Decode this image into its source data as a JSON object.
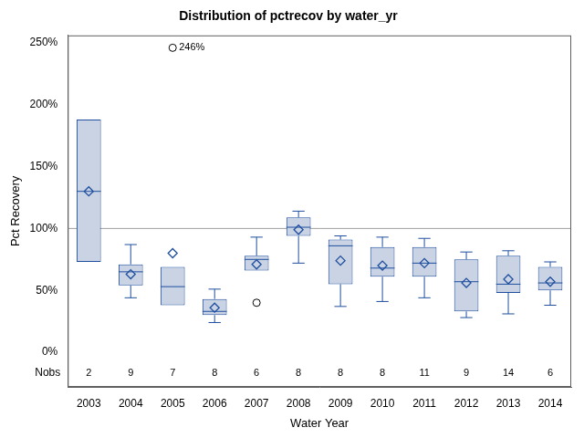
{
  "chart_data": {
    "type": "boxplot",
    "title": "Distribution of pctrecov by water_yr",
    "x_label": "Water Year",
    "y_label": "Pct Recovery",
    "categories": [
      "2003",
      "2004",
      "2005",
      "2006",
      "2007",
      "2008",
      "2009",
      "2010",
      "2011",
      "2012",
      "2013",
      "2014"
    ],
    "whisker_low": [
      73,
      44,
      38,
      24,
      66,
      72,
      37,
      41,
      44,
      28,
      31,
      38
    ],
    "q1": [
      73,
      54,
      38,
      30,
      66,
      94,
      55,
      61,
      61,
      33,
      48,
      50
    ],
    "median": [
      130,
      65,
      53,
      33,
      75,
      101,
      86,
      68,
      72,
      57,
      55,
      56
    ],
    "q3": [
      188,
      71,
      69,
      43,
      78,
      109,
      91,
      85,
      85,
      75,
      78,
      69
    ],
    "whisker_high": [
      188,
      87,
      69,
      51,
      93,
      114,
      94,
      93,
      92,
      81,
      82,
      73
    ],
    "mean": [
      130,
      63,
      80,
      36,
      71,
      99,
      74,
      70,
      72,
      56,
      59,
      57
    ],
    "outliers": [
      {
        "category": "2005",
        "value": 246,
        "label": "246%"
      },
      {
        "category": "2007",
        "value": 40
      }
    ],
    "nobs_label": "Nobs",
    "nobs": [
      2,
      9,
      7,
      8,
      6,
      8,
      8,
      8,
      11,
      9,
      14,
      6
    ],
    "reference_line": 100,
    "ylim": [
      -28,
      256
    ],
    "yticks": [
      {
        "value": 0,
        "label": "0%"
      },
      {
        "value": 50,
        "label": "50%"
      },
      {
        "value": 100,
        "label": "100%"
      },
      {
        "value": 150,
        "label": "150%"
      },
      {
        "value": 200,
        "label": "200%"
      },
      {
        "value": 250,
        "label": "250%"
      }
    ],
    "color": "#c9d3e4",
    "grid": false
  }
}
